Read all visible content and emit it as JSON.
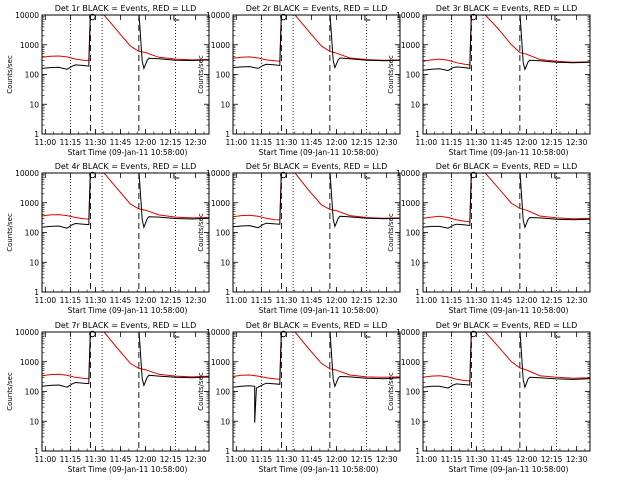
{
  "colors": {
    "events": "#000000",
    "lld": "#e00000",
    "axes": "#000000"
  },
  "chart_data": [
    {
      "type": "line",
      "title": "Det 1r BLACK = Events, RED = LLD",
      "xlabel": "Start Time (09-Jan-11 10:58:00)",
      "ylabel": "Counts/sec",
      "x_ticks": [
        "11:00",
        "11:15",
        "11:30",
        "11:45",
        "12:00",
        "12:15",
        "12:30"
      ],
      "y_ticks": [
        "1",
        "10",
        "100",
        "1000",
        "10000"
      ],
      "yscale": "log",
      "xlim_min": [
        0,
        100
      ],
      "ylim": [
        1,
        10000
      ],
      "vlines_dotted_min": [
        17,
        36,
        80
      ],
      "vlines_dashed_min": [
        29,
        58
      ],
      "series": [
        {
          "color": "red",
          "x_min": [
            0,
            5,
            10,
            15,
            20,
            25,
            28,
            29,
            30,
            36,
            45,
            53,
            58,
            62,
            70,
            80,
            90,
            100
          ],
          "y": [
            380,
            410,
            420,
            390,
            330,
            300,
            290,
            12000,
            12000,
            12000,
            3000,
            900,
            600,
            550,
            380,
            330,
            310,
            320
          ]
        },
        {
          "color": "black",
          "x_min": [
            0,
            5,
            10,
            15,
            18,
            20,
            25,
            28,
            29,
            58,
            60,
            61,
            63,
            64,
            70,
            80,
            90,
            100
          ],
          "y": [
            160,
            170,
            175,
            150,
            190,
            210,
            200,
            190,
            12000,
            12000,
            280,
            160,
            300,
            350,
            340,
            300,
            295,
            310
          ]
        }
      ]
    },
    {
      "type": "line",
      "title": "Det 2r BLACK = Events, RED = LLD",
      "xlabel": "Start Time (09-Jan-11 10:58:00)",
      "ylabel": "Counts/sec",
      "x_ticks": [
        "11:00",
        "11:15",
        "11:30",
        "11:45",
        "12:00",
        "12:15",
        "12:30"
      ],
      "y_ticks": [
        "1",
        "10",
        "100",
        "1000",
        "10000"
      ],
      "yscale": "log",
      "xlim_min": [
        0,
        100
      ],
      "ylim": [
        1,
        10000
      ],
      "vlines_dotted_min": [
        17,
        36,
        80
      ],
      "vlines_dashed_min": [
        29,
        58
      ],
      "series": [
        {
          "color": "red",
          "x_min": [
            0,
            5,
            10,
            15,
            20,
            25,
            28,
            29,
            30,
            36,
            45,
            53,
            58,
            62,
            70,
            80,
            90,
            100
          ],
          "y": [
            350,
            380,
            390,
            360,
            310,
            290,
            280,
            12000,
            12000,
            12000,
            3000,
            900,
            600,
            520,
            360,
            320,
            300,
            310
          ]
        },
        {
          "color": "black",
          "x_min": [
            0,
            5,
            10,
            15,
            18,
            20,
            25,
            28,
            29,
            58,
            60,
            61,
            63,
            64,
            70,
            80,
            90,
            100
          ],
          "y": [
            170,
            180,
            185,
            160,
            200,
            220,
            210,
            200,
            12000,
            12000,
            290,
            170,
            310,
            360,
            340,
            300,
            290,
            300
          ]
        }
      ]
    },
    {
      "type": "line",
      "title": "Det 3r BLACK = Events, RED = LLD",
      "xlabel": "Start Time (09-Jan-11 10:58:00)",
      "ylabel": "Counts/sec",
      "x_ticks": [
        "11:00",
        "11:15",
        "11:30",
        "11:45",
        "12:00",
        "12:15",
        "12:30"
      ],
      "y_ticks": [
        "1",
        "10",
        "100",
        "1000",
        "10000"
      ],
      "yscale": "log",
      "xlim_min": [
        0,
        100
      ],
      "ylim": [
        1,
        10000
      ],
      "vlines_dotted_min": [
        17,
        36,
        80
      ],
      "vlines_dashed_min": [
        29,
        58
      ],
      "series": [
        {
          "color": "red",
          "x_min": [
            0,
            5,
            10,
            15,
            20,
            25,
            28,
            29,
            30,
            36,
            45,
            53,
            58,
            62,
            70,
            80,
            90,
            100
          ],
          "y": [
            280,
            310,
            330,
            300,
            250,
            220,
            210,
            12000,
            12000,
            12000,
            3500,
            1000,
            550,
            480,
            320,
            280,
            260,
            270
          ]
        },
        {
          "color": "black",
          "x_min": [
            0,
            5,
            10,
            15,
            18,
            20,
            25,
            28,
            29,
            58,
            60,
            61,
            63,
            64,
            70,
            80,
            90,
            100
          ],
          "y": [
            140,
            150,
            155,
            135,
            170,
            180,
            170,
            160,
            12000,
            12000,
            250,
            150,
            270,
            300,
            290,
            260,
            250,
            260
          ]
        }
      ]
    },
    {
      "type": "line",
      "title": "Det 4r BLACK = Events, RED = LLD",
      "xlabel": "Start Time (09-Jan-11 10:58:00)",
      "ylabel": "Counts/sec",
      "x_ticks": [
        "11:00",
        "11:15",
        "11:30",
        "11:45",
        "12:00",
        "12:15",
        "12:30"
      ],
      "y_ticks": [
        "1",
        "10",
        "100",
        "1000",
        "10000"
      ],
      "yscale": "log",
      "xlim_min": [
        0,
        100
      ],
      "ylim": [
        1,
        10000
      ],
      "vlines_dotted_min": [
        17,
        36,
        80
      ],
      "vlines_dashed_min": [
        29,
        58
      ],
      "series": [
        {
          "color": "red",
          "x_min": [
            0,
            5,
            10,
            15,
            20,
            25,
            28,
            29,
            30,
            36,
            45,
            53,
            58,
            62,
            70,
            80,
            90,
            100
          ],
          "y": [
            360,
            390,
            400,
            370,
            320,
            290,
            280,
            12000,
            12000,
            12000,
            3000,
            900,
            620,
            560,
            390,
            330,
            310,
            320
          ]
        },
        {
          "color": "black",
          "x_min": [
            0,
            5,
            10,
            15,
            18,
            20,
            25,
            28,
            29,
            58,
            60,
            61,
            63,
            64,
            70,
            80,
            90,
            100
          ],
          "y": [
            150,
            160,
            165,
            140,
            180,
            200,
            190,
            185,
            12000,
            12000,
            270,
            150,
            290,
            340,
            330,
            295,
            285,
            300
          ]
        }
      ]
    },
    {
      "type": "line",
      "title": "Det 5r BLACK = Events, RED = LLD",
      "xlabel": "Start Time (09-Jan-11 10:58:00)",
      "ylabel": "Counts/sec",
      "x_ticks": [
        "11:00",
        "11:15",
        "11:30",
        "11:45",
        "12:00",
        "12:15",
        "12:30"
      ],
      "y_ticks": [
        "1",
        "10",
        "100",
        "1000",
        "10000"
      ],
      "yscale": "log",
      "xlim_min": [
        0,
        100
      ],
      "ylim": [
        1,
        10000
      ],
      "vlines_dotted_min": [
        17,
        36,
        80
      ],
      "vlines_dashed_min": [
        29,
        58
      ],
      "series": [
        {
          "color": "red",
          "x_min": [
            0,
            5,
            10,
            15,
            20,
            25,
            28,
            29,
            30,
            36,
            45,
            53,
            58,
            62,
            70,
            80,
            90,
            100
          ],
          "y": [
            340,
            370,
            380,
            350,
            300,
            270,
            265,
            12000,
            12000,
            12000,
            2800,
            850,
            600,
            540,
            370,
            320,
            300,
            310
          ]
        },
        {
          "color": "black",
          "x_min": [
            0,
            5,
            10,
            15,
            18,
            20,
            25,
            28,
            29,
            58,
            60,
            61,
            63,
            64,
            70,
            80,
            90,
            100
          ],
          "y": [
            155,
            165,
            170,
            145,
            185,
            205,
            195,
            190,
            12000,
            12000,
            280,
            160,
            300,
            350,
            335,
            300,
            290,
            300
          ]
        }
      ]
    },
    {
      "type": "line",
      "title": "Det 6r BLACK = Events, RED = LLD",
      "xlabel": "Start Time (09-Jan-11 10:58:00)",
      "ylabel": "Counts/sec",
      "x_ticks": [
        "11:00",
        "11:15",
        "11:30",
        "11:45",
        "12:00",
        "12:15",
        "12:30"
      ],
      "y_ticks": [
        "1",
        "10",
        "100",
        "1000",
        "10000"
      ],
      "yscale": "log",
      "xlim_min": [
        0,
        100
      ],
      "ylim": [
        1,
        10000
      ],
      "vlines_dotted_min": [
        17,
        36,
        80
      ],
      "vlines_dashed_min": [
        29,
        58
      ],
      "series": [
        {
          "color": "red",
          "x_min": [
            0,
            5,
            10,
            15,
            20,
            25,
            28,
            29,
            30,
            36,
            45,
            53,
            58,
            62,
            70,
            80,
            90,
            100
          ],
          "y": [
            300,
            330,
            350,
            320,
            270,
            240,
            230,
            12000,
            12000,
            12000,
            3200,
            950,
            650,
            560,
            360,
            310,
            290,
            300
          ]
        },
        {
          "color": "black",
          "x_min": [
            0,
            5,
            10,
            15,
            18,
            20,
            25,
            28,
            29,
            58,
            60,
            61,
            63,
            64,
            70,
            80,
            90,
            100
          ],
          "y": [
            150,
            160,
            160,
            140,
            175,
            190,
            180,
            170,
            12000,
            12000,
            260,
            150,
            280,
            320,
            310,
            280,
            270,
            280
          ]
        }
      ]
    },
    {
      "type": "line",
      "title": "Det 7r BLACK = Events, RED = LLD",
      "xlabel": "Start Time (09-Jan-11 10:58:00)",
      "ylabel": "Counts/sec",
      "x_ticks": [
        "11:00",
        "11:15",
        "11:30",
        "11:45",
        "12:00",
        "12:15",
        "12:30"
      ],
      "y_ticks": [
        "1",
        "10",
        "100",
        "1000",
        "10000"
      ],
      "yscale": "log",
      "xlim_min": [
        0,
        100
      ],
      "ylim": [
        1,
        10000
      ],
      "vlines_dotted_min": [
        17,
        36,
        80
      ],
      "vlines_dashed_min": [
        29,
        58
      ],
      "series": [
        {
          "color": "red",
          "x_min": [
            0,
            5,
            10,
            15,
            20,
            25,
            28,
            29,
            30,
            36,
            45,
            53,
            58,
            62,
            70,
            80,
            90,
            100
          ],
          "y": [
            340,
            370,
            380,
            350,
            300,
            275,
            270,
            12000,
            12000,
            12000,
            2900,
            880,
            600,
            540,
            380,
            330,
            310,
            330
          ]
        },
        {
          "color": "black",
          "x_min": [
            0,
            5,
            10,
            15,
            18,
            20,
            25,
            28,
            29,
            58,
            60,
            61,
            63,
            64,
            70,
            80,
            90,
            100
          ],
          "y": [
            150,
            160,
            165,
            140,
            180,
            200,
            190,
            185,
            12000,
            12000,
            270,
            160,
            300,
            350,
            330,
            300,
            290,
            310
          ]
        }
      ]
    },
    {
      "type": "line",
      "title": "Det 8r BLACK = Events, RED = LLD",
      "xlabel": "Start Time (09-Jan-11 10:58:00)",
      "ylabel": "Counts/sec",
      "x_ticks": [
        "11:00",
        "11:15",
        "11:30",
        "11:45",
        "12:00",
        "12:15",
        "12:30"
      ],
      "y_ticks": [
        "1",
        "10",
        "100",
        "1000",
        "10000"
      ],
      "yscale": "log",
      "xlim_min": [
        0,
        100
      ],
      "ylim": [
        1,
        10000
      ],
      "vlines_dotted_min": [
        17,
        36,
        80
      ],
      "vlines_dashed_min": [
        29,
        58
      ],
      "series": [
        {
          "color": "red",
          "x_min": [
            0,
            5,
            10,
            15,
            20,
            25,
            28,
            29,
            30,
            36,
            45,
            53,
            58,
            62,
            70,
            80,
            90,
            100
          ],
          "y": [
            320,
            350,
            360,
            330,
            290,
            265,
            260,
            12000,
            12000,
            12000,
            2900,
            880,
            580,
            520,
            360,
            310,
            300,
            310
          ]
        },
        {
          "color": "black",
          "x_min": [
            0,
            5,
            10,
            13,
            13,
            14,
            18,
            20,
            25,
            28,
            29,
            58,
            60,
            61,
            63,
            64,
            70,
            80,
            90,
            100
          ],
          "y": [
            140,
            150,
            155,
            150,
            9,
            130,
            170,
            190,
            180,
            175,
            12000,
            12000,
            260,
            150,
            280,
            320,
            310,
            280,
            270,
            290
          ]
        }
      ]
    },
    {
      "type": "line",
      "title": "Det 9r BLACK = Events, RED = LLD",
      "xlabel": "Start Time (09-Jan-11 10:58:00)",
      "ylabel": "Counts/sec",
      "x_ticks": [
        "11:00",
        "11:15",
        "11:30",
        "11:45",
        "12:00",
        "12:15",
        "12:30"
      ],
      "y_ticks": [
        "1",
        "10",
        "100",
        "1000",
        "10000"
      ],
      "yscale": "log",
      "xlim_min": [
        0,
        100
      ],
      "ylim": [
        1,
        10000
      ],
      "vlines_dotted_min": [
        17,
        36,
        80
      ],
      "vlines_dashed_min": [
        29,
        58
      ],
      "series": [
        {
          "color": "red",
          "x_min": [
            0,
            5,
            10,
            15,
            20,
            25,
            28,
            29,
            30,
            36,
            45,
            53,
            58,
            62,
            70,
            80,
            90,
            100
          ],
          "y": [
            300,
            330,
            340,
            310,
            260,
            235,
            225,
            12000,
            12000,
            12000,
            3300,
            1000,
            620,
            530,
            340,
            300,
            280,
            290
          ]
        },
        {
          "color": "black",
          "x_min": [
            0,
            5,
            10,
            15,
            18,
            20,
            25,
            28,
            29,
            58,
            60,
            61,
            63,
            64,
            70,
            80,
            90,
            100
          ],
          "y": [
            140,
            150,
            150,
            130,
            165,
            180,
            170,
            165,
            12000,
            12000,
            250,
            140,
            270,
            300,
            290,
            265,
            255,
            270
          ]
        }
      ]
    }
  ]
}
